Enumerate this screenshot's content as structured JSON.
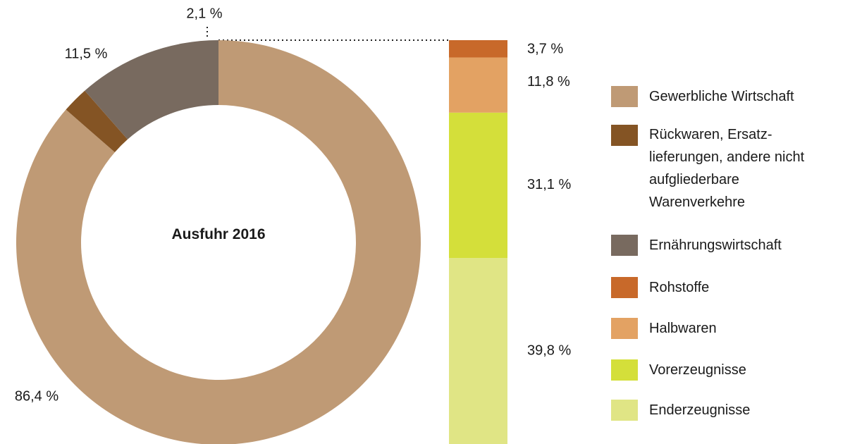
{
  "chart_data": [
    {
      "type": "pie",
      "center_label": "Ausfuhr 2016",
      "categories": [
        "Gewerbliche Wirtschaft",
        "Rückwaren, Ersatz-lieferungen, andere nicht aufgliederbare Warenverkehre",
        "Ernährungswirtschaft"
      ],
      "values": [
        86.4,
        2.1,
        11.5
      ],
      "value_labels": [
        "86,4 %",
        "2,1 %",
        "11,5 %"
      ],
      "colors": [
        "#bf9a75",
        "#845424",
        "#786a5f"
      ]
    },
    {
      "type": "bar",
      "stacked": true,
      "series": [
        {
          "name": "Rohstoffe",
          "color": "#c8692a",
          "values": [
            3.7
          ],
          "value_labels": [
            "3,7 %"
          ]
        },
        {
          "name": "Halbwaren",
          "color": "#e3a263",
          "values": [
            11.8
          ],
          "value_labels": [
            "11,8 %"
          ]
        },
        {
          "name": "Vorerzeugnisse",
          "color": "#d4df3a",
          "values": [
            31.1
          ],
          "value_labels": [
            "31,1 %"
          ]
        },
        {
          "name": "Enderzeugnisse",
          "color": "#e0e585",
          "values": [
            39.8
          ],
          "value_labels": [
            "39,8 %"
          ]
        }
      ]
    }
  ]
}
